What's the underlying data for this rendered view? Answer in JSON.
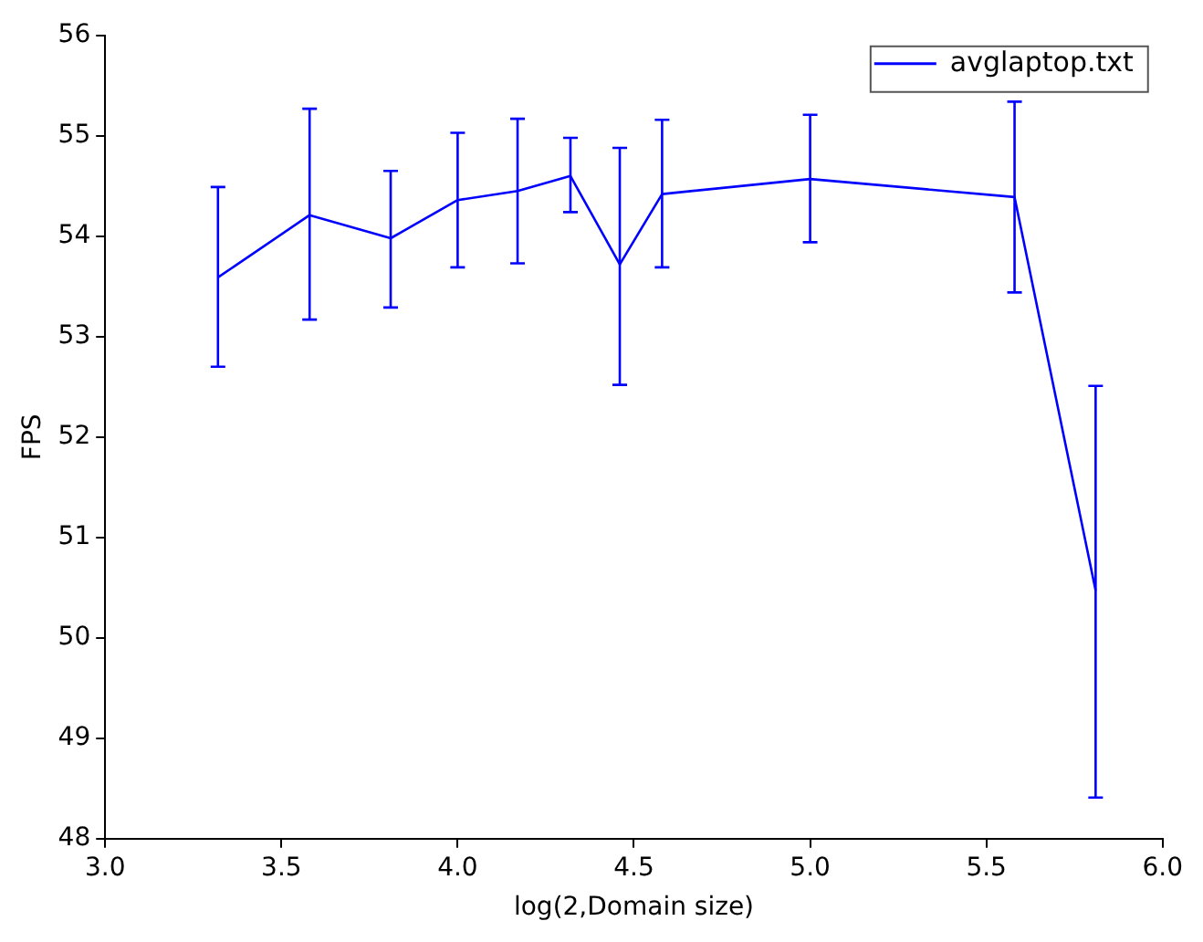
{
  "chart_data": {
    "type": "line",
    "xlabel": "log(2,Domain size)",
    "ylabel": "FPS",
    "x": [
      3.32,
      3.58,
      3.81,
      4.0,
      4.17,
      4.32,
      4.46,
      4.58,
      5.0,
      5.58,
      5.81
    ],
    "series": [
      {
        "name": "avglaptop.txt",
        "color": "#0000ff",
        "values": [
          53.59,
          54.21,
          53.98,
          54.36,
          54.45,
          54.6,
          53.72,
          54.42,
          54.57,
          54.39,
          50.47
        ],
        "errors": [
          [
            52.7,
            54.49
          ],
          [
            53.17,
            55.27
          ],
          [
            53.29,
            54.65
          ],
          [
            53.69,
            55.03
          ],
          [
            53.73,
            55.17
          ],
          [
            54.24,
            54.98
          ],
          [
            52.52,
            54.88
          ],
          [
            53.69,
            55.16
          ],
          [
            53.94,
            55.21
          ],
          [
            53.44,
            55.34
          ],
          [
            48.41,
            52.51
          ]
        ]
      }
    ],
    "xlim": [
      3,
      6
    ],
    "xticks": [
      {
        "value": 3,
        "label": "3.0"
      },
      {
        "value": 3.5,
        "label": "3.5"
      },
      {
        "value": 4,
        "label": "4.0"
      },
      {
        "value": 4.5,
        "label": "4.5"
      },
      {
        "value": 5,
        "label": "5.0"
      },
      {
        "value": 5.5,
        "label": "5.5"
      },
      {
        "value": 6,
        "label": "6.0"
      }
    ],
    "ylim": [
      48,
      56
    ],
    "yticks": [
      48,
      49,
      50,
      51,
      52,
      53,
      54,
      55,
      56
    ],
    "grid": false,
    "legend": "top right",
    "marker": "none",
    "line_style": "solid"
  }
}
